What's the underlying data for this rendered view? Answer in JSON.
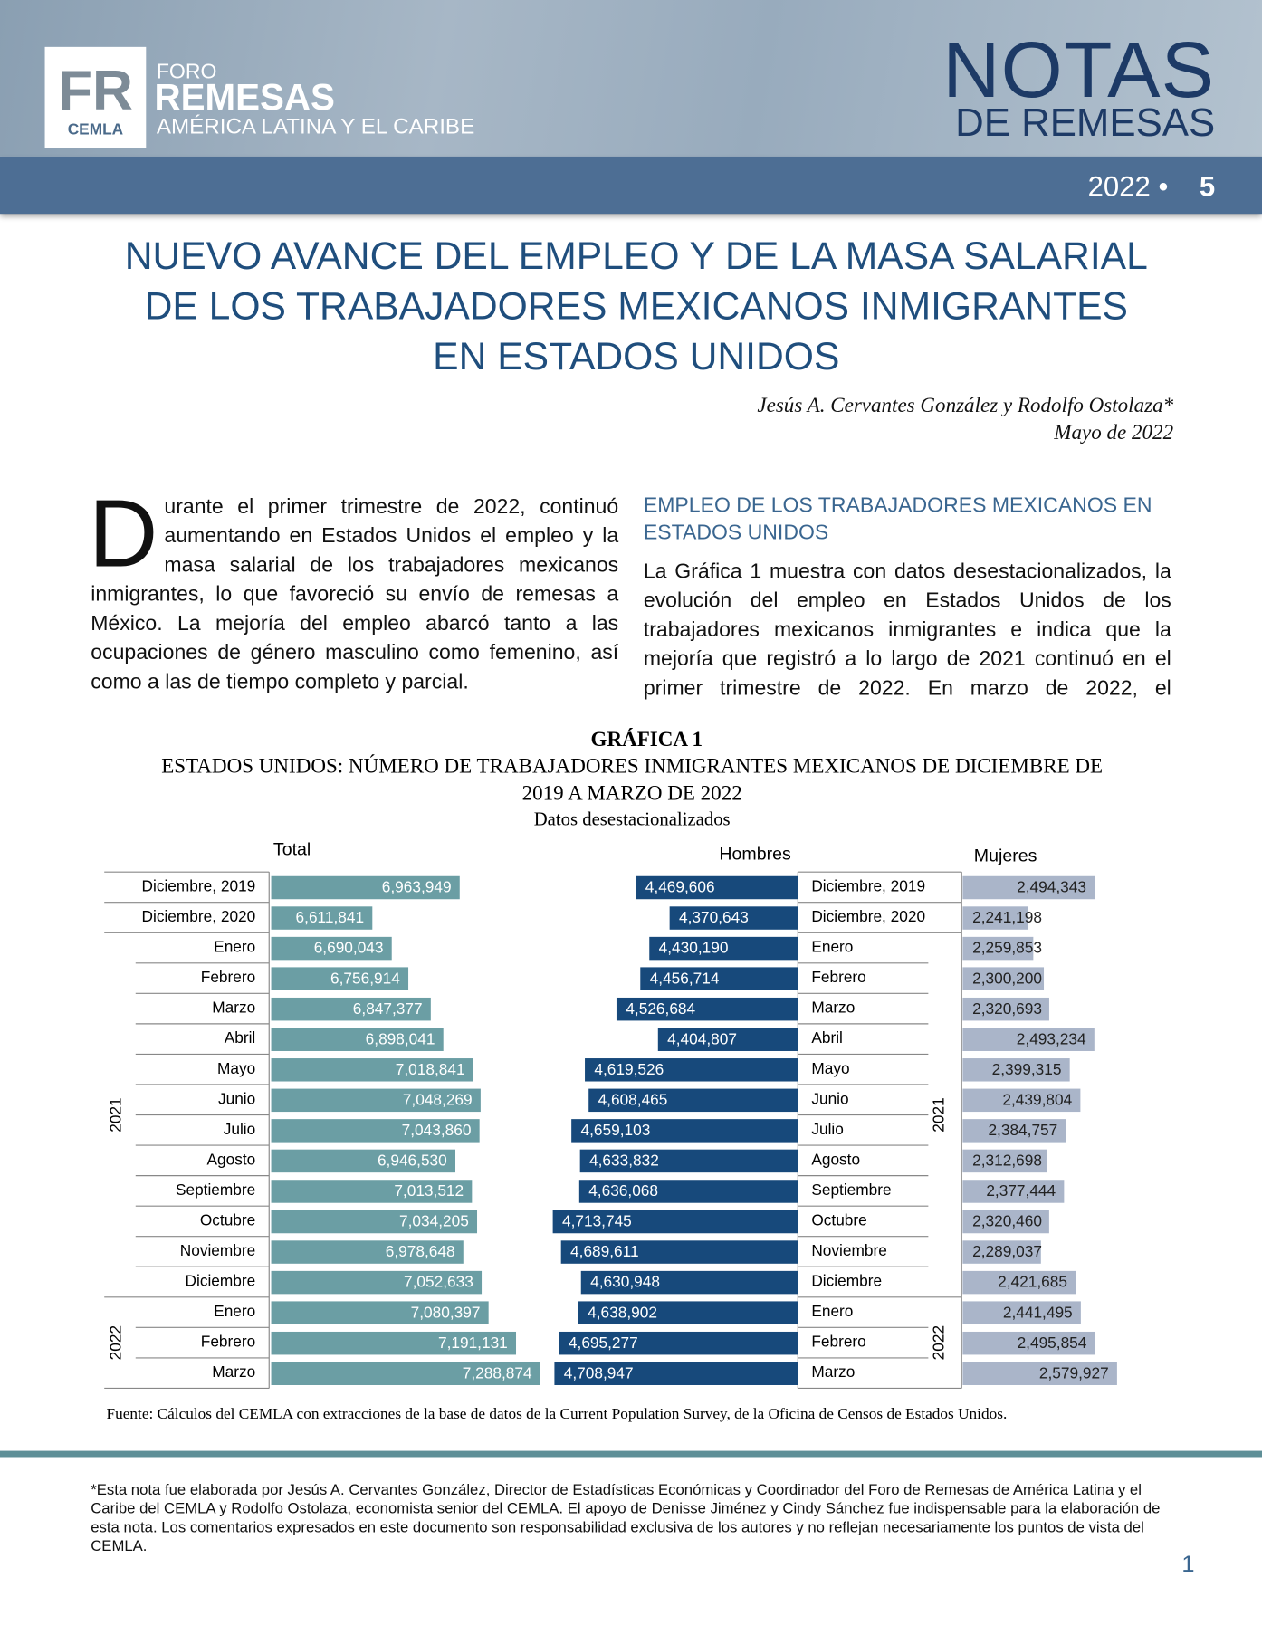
{
  "header": {
    "logo": "FR",
    "logo_sub": "CEMLA",
    "foro": "FORO",
    "remesas": "REMESAS",
    "region": "AMÉRICA LATINA Y EL CARIBE",
    "notas": "NOTAS",
    "de_remesas": "DE REMESAS",
    "year": "2022 •",
    "number": "5"
  },
  "title": "NUEVO AVANCE DEL EMPLEO Y DE LA MASA SALARIAL DE LOS TRABAJADORES MEXICANOS INMIGRANTES EN ESTADOS UNIDOS",
  "authors": "Jesús A. Cervantes González y Rodolfo Ostolaza*",
  "date": "Mayo de 2022",
  "body": {
    "drop_cap": "D",
    "intro": "urante el primer trimestre de 2022, continuó aumentando en Estados Unidos el empleo y la masa salarial de los trabajadores mexicanos inmigrantes, lo que favoreció su envío de remesas a México. La mejoría del empleo abarcó tanto a las ocupaciones de género masculino como femenino, así como a las de tiempo completo y parcial.",
    "section_heading": "EMPLEO DE LOS TRABAJADORES MEXICANOS EN ESTADOS UNIDOS",
    "paragraph": "La Gráfica 1 muestra con datos desestacionalizados, la evolución del empleo en Estados Unidos de los trabajadores mexicanos inmigrantes e indica que la mejoría que registró a lo largo de 2021 continuó en el primer trimestre de 2022. En marzo de 2022, el"
  },
  "chart_data": {
    "type": "bar",
    "label": "GRÁFICA 1",
    "title": "ESTADOS UNIDOS: NÚMERO DE TRABAJADORES INMIGRANTES MEXICANOS DE DICIEMBRE DE 2019 A MARZO DE 2022",
    "subtitle": "Datos desestacionalizados",
    "categories": [
      "Diciembre, 2019",
      "Diciembre, 2020",
      "Enero",
      "Febrero",
      "Marzo",
      "Abril",
      "Mayo",
      "Junio",
      "Julio",
      "Agosto",
      "Septiembre",
      "Octubre",
      "Noviembre",
      "Diciembre",
      "Enero",
      "Febrero",
      "Marzo"
    ],
    "groups": [
      {
        "label": "2021",
        "from": 2,
        "to": 13
      },
      {
        "label": "2022",
        "from": 14,
        "to": 16
      }
    ],
    "series": [
      {
        "name": "Total",
        "color": "#6b9ea4",
        "values": [
          6963949,
          6611841,
          6690043,
          6756914,
          6847377,
          6898041,
          7018841,
          7048269,
          7043860,
          6946530,
          7013512,
          7034205,
          6978648,
          7052633,
          7080397,
          7191131,
          7288874
        ],
        "value_labels": [
          "6,963,949",
          "6,611,841",
          "6,690,043",
          "6,756,914",
          "6,847,377",
          "6,898,041",
          "7,018,841",
          "7,048,269",
          "7,043,860",
          "6,946,530",
          "7,013,512",
          "7,034,205",
          "6,978,648",
          "7,052,633",
          "7,080,397",
          "7,191,131",
          "7,288,874"
        ]
      },
      {
        "name": "Hombres",
        "color": "#17497b",
        "values": [
          4469606,
          4370643,
          4430190,
          4456714,
          4526684,
          4404807,
          4619526,
          4608465,
          4659103,
          4633832,
          4636068,
          4713745,
          4689611,
          4630948,
          4638902,
          4695277,
          4708947
        ],
        "value_labels": [
          "4,469,606",
          "4,370,643",
          "4,430,190",
          "4,456,714",
          "4,526,684",
          "4,404,807",
          "4,619,526",
          "4,608,465",
          "4,659,103",
          "4,633,832",
          "4,636,068",
          "4,713,745",
          "4,689,611",
          "4,630,948",
          "4,638,902",
          "4,695,277",
          "4,708,947"
        ]
      },
      {
        "name": "Mujeres",
        "color": "#aab5c9",
        "values": [
          2494343,
          2241198,
          2259853,
          2300200,
          2320693,
          2493234,
          2399315,
          2439804,
          2384757,
          2312698,
          2377444,
          2320460,
          2289037,
          2421685,
          2441495,
          2495854,
          2579927
        ],
        "value_labels": [
          "2,494,343",
          "2,241,198",
          "2,259,853",
          "2,300,200",
          "2,320,693",
          "2,493,234",
          "2,399,315",
          "2,439,804",
          "2,384,757",
          "2,312,698",
          "2,377,444",
          "2,320,460",
          "2,289,037",
          "2,421,685",
          "2,441,495",
          "2,495,854",
          "2,579,927"
        ]
      }
    ],
    "source": "Fuente: Cálculos del CEMLA con extracciones de la base de datos de la Current Population Survey, de la Oficina de Censos de Estados Unidos."
  },
  "footnote": "*Esta nota fue elaborada por Jesús A. Cervantes González, Director de Estadísticas Económicas y Coordinador del Foro de Remesas de América Latina y el Caribe del CEMLA y Rodolfo Ostolaza, economista senior del CEMLA. El apoyo de Denisse Jiménez y Cindy Sánchez fue indispensable para la elaboración de esta nota. Los comentarios expresados en este documento son responsabilidad exclusiva de los autores y no reflejan necesariamente los puntos de vista del CEMLA.",
  "page_number": "1"
}
